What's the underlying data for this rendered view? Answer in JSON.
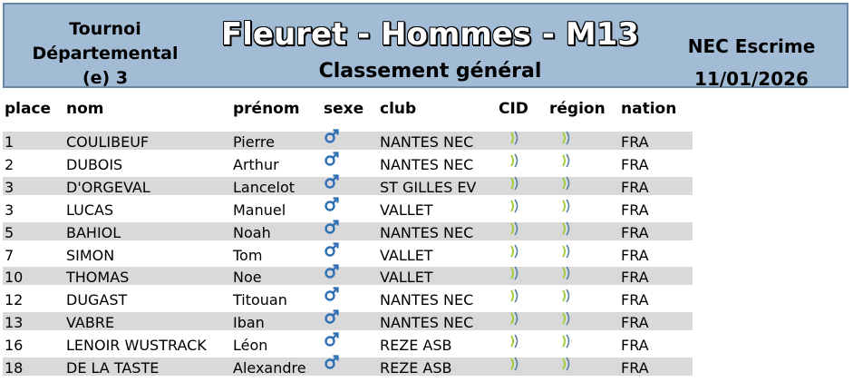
{
  "header": {
    "left_lines": [
      "Tournoi",
      "Départemental",
      "(e) 3"
    ],
    "title": "Fleuret - Hommes - M13",
    "subtitle": "Classement général",
    "org": "NEC Escrime",
    "date": "11/01/2026"
  },
  "columns": {
    "place": "place",
    "nom": "nom",
    "prenom": "prénom",
    "sexe": "sexe",
    "club": "club",
    "cid": "CID",
    "region": "région",
    "nation": "nation"
  },
  "icons": {
    "sexe": "male-symbol-icon",
    "cid": "signal-icon",
    "region": "signal-icon"
  },
  "colors": {
    "header_bg": "#a3bcd6",
    "row_shade": "#d9d9d9",
    "male_icon": "#2f6fb5",
    "signal_icon": "#9acd32"
  },
  "rows": [
    {
      "place": "1",
      "nom": "COULIBEUF",
      "prenom": "Pierre",
      "club": "NANTES NEC",
      "nation": "FRA"
    },
    {
      "place": "2",
      "nom": "DUBOIS",
      "prenom": "Arthur",
      "club": "NANTES NEC",
      "nation": "FRA"
    },
    {
      "place": "3",
      "nom": "D'ORGEVAL",
      "prenom": "Lancelot",
      "club": "ST GILLES EV",
      "nation": "FRA"
    },
    {
      "place": "3",
      "nom": "LUCAS",
      "prenom": "Manuel",
      "club": "VALLET",
      "nation": "FRA"
    },
    {
      "place": "5",
      "nom": "BAHIOL",
      "prenom": "Noah",
      "club": "NANTES NEC",
      "nation": "FRA"
    },
    {
      "place": "7",
      "nom": "SIMON",
      "prenom": "Tom",
      "club": "VALLET",
      "nation": "FRA"
    },
    {
      "place": "10",
      "nom": "THOMAS",
      "prenom": "Noe",
      "club": "VALLET",
      "nation": "FRA"
    },
    {
      "place": "12",
      "nom": "DUGAST",
      "prenom": "Titouan",
      "club": "NANTES NEC",
      "nation": "FRA"
    },
    {
      "place": "13",
      "nom": "VABRE",
      "prenom": "Iban",
      "club": "NANTES NEC",
      "nation": "FRA"
    },
    {
      "place": "16",
      "nom": "LENOIR WUSTRACK",
      "prenom": "Léon",
      "club": "REZE ASB",
      "nation": "FRA"
    },
    {
      "place": "18",
      "nom": "DE LA TASTE",
      "prenom": "Alexandre",
      "club": "REZE ASB",
      "nation": "FRA"
    }
  ]
}
